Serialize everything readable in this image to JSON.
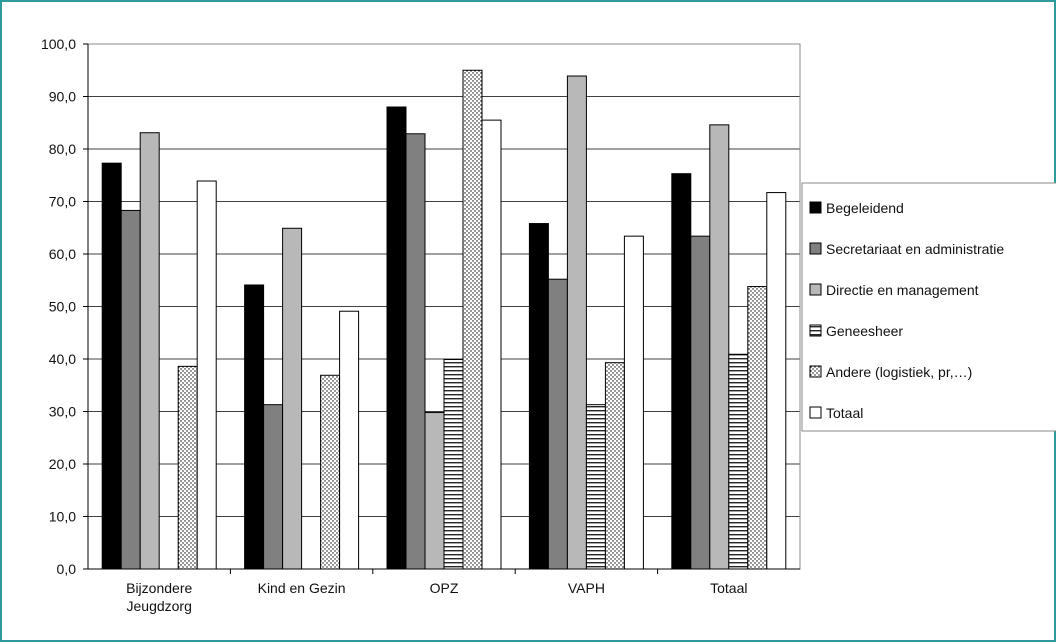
{
  "chart_data": {
    "type": "bar",
    "title": "",
    "xlabel": "",
    "ylabel": "",
    "ylim": [
      0,
      100
    ],
    "ytick_step": 10,
    "ytick_labels": [
      "0,0",
      "10,0",
      "20,0",
      "30,0",
      "40,0",
      "50,0",
      "60,0",
      "70,0",
      "80,0",
      "90,0",
      "100,0"
    ],
    "grid": true,
    "legend_position": "right",
    "categories": [
      [
        "Bijzondere",
        "Jeugdzorg"
      ],
      [
        "Kind en Gezin"
      ],
      [
        "OPZ"
      ],
      [
        "VAPH"
      ],
      [
        "Totaal"
      ]
    ],
    "series": [
      {
        "name": "Begeleidend",
        "color": "#000000",
        "pattern": "solid",
        "values": [
          77.3,
          54.1,
          88.0,
          65.8,
          75.3
        ]
      },
      {
        "name": "Secretariaat en administratie",
        "color": "#808080",
        "pattern": "solid",
        "values": [
          68.3,
          31.3,
          82.9,
          55.2,
          63.4
        ]
      },
      {
        "name": "Directie en management",
        "color": "#b8b8b8",
        "pattern": "solid",
        "values": [
          83.1,
          64.9,
          29.8,
          93.9,
          84.6
        ]
      },
      {
        "name": "Geneesheer",
        "color": "#ffffff",
        "pattern": "horizontal-lines",
        "values": [
          0,
          0,
          39.9,
          31.3,
          40.9
        ]
      },
      {
        "name": "Andere (logistiek, pr,…)",
        "color": "#ffffff",
        "pattern": "dots",
        "values": [
          38.6,
          36.9,
          95.0,
          39.3,
          53.8
        ]
      },
      {
        "name": "Totaal",
        "color": "#ffffff",
        "pattern": "solid",
        "values": [
          73.9,
          49.1,
          85.5,
          63.4,
          71.7
        ]
      }
    ]
  }
}
